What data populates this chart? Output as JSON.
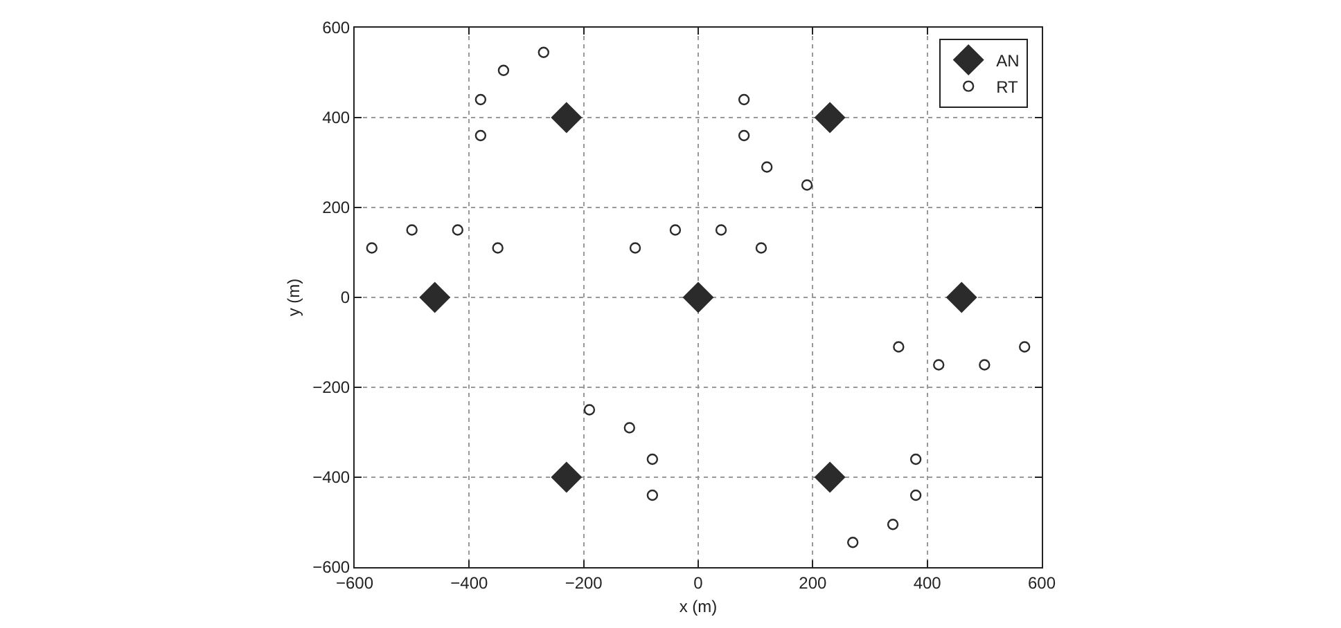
{
  "chart_data": {
    "type": "scatter",
    "xlabel": "x (m)",
    "ylabel": "y (m)",
    "xlim": [
      -600,
      600
    ],
    "xticks": [
      -600,
      -400,
      -200,
      0,
      200,
      400,
      600
    ],
    "ylim": [
      -600,
      600
    ],
    "yticks": [
      -600,
      -400,
      -200,
      0,
      200,
      400,
      600
    ],
    "grid": true,
    "legend": "top right",
    "series": [
      {
        "name": "AN",
        "color": "#2b2b2b",
        "marker": "diamond",
        "x": [
          -460,
          -230,
          0,
          230,
          460,
          -230,
          230
        ],
        "values": [
          0,
          400,
          0,
          400,
          0,
          -400,
          -400
        ]
      },
      {
        "name": "RT",
        "color": "#2b2b2b",
        "marker": "circle",
        "x": [
          -570,
          -500,
          -420,
          -350,
          -380,
          -380,
          -340,
          -270,
          -110,
          -40,
          80,
          80,
          120,
          190,
          40,
          110,
          -190,
          -120,
          -80,
          -80,
          350,
          420,
          500,
          570,
          380,
          380,
          340,
          270
        ],
        "values": [
          110,
          150,
          150,
          110,
          440,
          360,
          505,
          545,
          110,
          150,
          440,
          360,
          290,
          250,
          150,
          110,
          -250,
          -290,
          -360,
          -440,
          -110,
          -150,
          -150,
          -110,
          -360,
          -440,
          -505,
          -545
        ]
      }
    ]
  }
}
